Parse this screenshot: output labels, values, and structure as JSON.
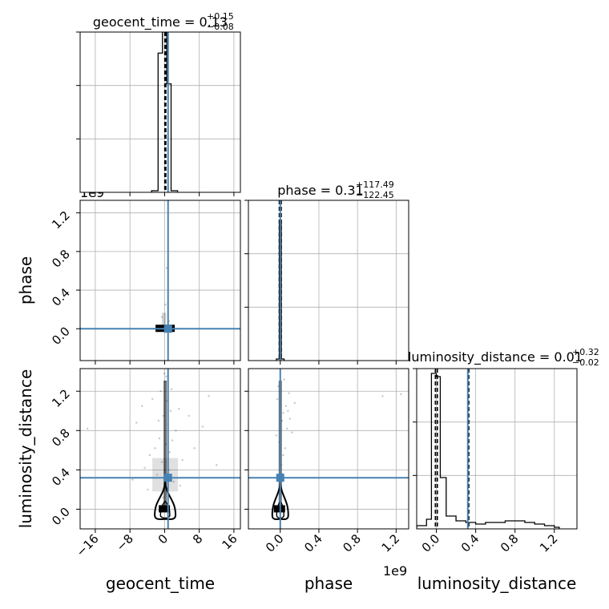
{
  "chart_data": {
    "type": "corner",
    "parameters": [
      "geocent_time",
      "phase",
      "luminosity_distance"
    ],
    "grid": true,
    "truth_color": "#4682b4",
    "histogram_color": "#000000",
    "titles": {
      "geocent_time": {
        "prefix": "geocent_time = 0.13",
        "sup": "+0.15",
        "sub": "−0.08"
      },
      "phase": {
        "prefix": "phase = 0.31",
        "sup": "+117.49",
        "sub": "−122.45"
      },
      "luminosity_distance": {
        "prefix": "luminosity_distance = 0.01",
        "sup": "+0.32",
        "sub": "−0.02"
      }
    },
    "axis_labels": {
      "x": [
        "geocent_time",
        "phase",
        "luminosity_distance"
      ],
      "y": [
        "phase",
        "luminosity_distance"
      ]
    },
    "offset_labels": {
      "phase_row": "1e9",
      "phase_col": "1e9"
    },
    "ticks": {
      "geocent_time": {
        "values": [
          -16,
          -8,
          0,
          8,
          16
        ],
        "labels": [
          "−16",
          "−8",
          "0",
          "8",
          "16"
        ]
      },
      "phase": {
        "values": [
          0.0,
          0.4,
          0.8,
          1.2
        ],
        "labels": [
          "0.0",
          "0.4",
          "0.8",
          "1.2"
        ]
      },
      "luminosity_distance": {
        "values": [
          0.0,
          0.4,
          0.8,
          1.2
        ],
        "labels": [
          "0.0",
          "0.4",
          "0.8",
          "1.2"
        ]
      }
    },
    "ranges": {
      "geocent_time": [
        -19.5,
        17.5
      ],
      "phase": [
        -0.33,
        1.33
      ],
      "luminosity_distance": [
        -0.2,
        1.43
      ]
    },
    "truths": {
      "geocent_time": 0.8,
      "phase": 0.0,
      "luminosity_distance": 0.32
    },
    "quantiles": {
      "geocent_time": [
        0.05,
        0.13,
        0.28
      ],
      "phase": [
        -0.01,
        0.0,
        0.01
      ],
      "luminosity_distance": [
        -0.01,
        0.01,
        0.33
      ]
    },
    "histograms": {
      "geocent_time": {
        "edges": [
          -3,
          -1.5,
          -0.5,
          0.5,
          1.5,
          3
        ],
        "values": [
          0.01,
          0.86,
          0.99,
          0.67,
          0.01
        ],
        "ylim": [
          0,
          0.99
        ]
      },
      "phase": {
        "edges": [
          -0.04,
          -0.01,
          0.01,
          0.04
        ],
        "values": [
          0.01,
          0.87,
          0.01
        ],
        "ylim": [
          0,
          1.0
        ]
      },
      "luminosity_distance": {
        "edges": [
          -0.2,
          -0.1,
          -0.05,
          0.0,
          0.04,
          0.1,
          0.2,
          0.3,
          0.4,
          0.5,
          0.6,
          0.7,
          0.8,
          0.9,
          1.0,
          1.1,
          1.2,
          1.25
        ],
        "values": [
          0.02,
          0.06,
          0.97,
          0.95,
          0.32,
          0.08,
          0.05,
          0.04,
          0.03,
          0.04,
          0.04,
          0.05,
          0.05,
          0.04,
          0.03,
          0.02,
          0.01
        ],
        "ylim": [
          0,
          1.0
        ]
      }
    },
    "scatter": {
      "phase_vs_geocent_time": [
        [
          -0.5,
          0.01
        ],
        [
          0.3,
          0.02
        ],
        [
          1.2,
          -0.01
        ],
        [
          -2.5,
          0.0
        ],
        [
          2.8,
          0.0
        ],
        [
          0.5,
          0.63
        ],
        [
          0.2,
          0.25
        ],
        [
          -0.6,
          0.12
        ],
        [
          1.0,
          0.08
        ],
        [
          -1.5,
          -0.01
        ],
        [
          3.5,
          0.0
        ]
      ],
      "luminosity_distance_vs_geocent_time": [
        [
          -17.8,
          0.82
        ],
        [
          -6.5,
          0.88
        ],
        [
          -5.2,
          1.05
        ],
        [
          -3.4,
          0.55
        ],
        [
          -4.6,
          0.42
        ],
        [
          -2.8,
          1.12
        ],
        [
          -1.7,
          0.35
        ],
        [
          -2.2,
          0.62
        ],
        [
          -1.2,
          0.72
        ],
        [
          -0.9,
          1.2
        ],
        [
          -0.6,
          0.48
        ],
        [
          -0.3,
          0.95
        ],
        [
          0.1,
          0.3
        ],
        [
          0.2,
          1.3
        ],
        [
          0.3,
          0.66
        ],
        [
          0.5,
          1.1
        ],
        [
          0.6,
          0.16
        ],
        [
          0.8,
          0.86
        ],
        [
          1.0,
          0.4
        ],
        [
          1.2,
          0.58
        ],
        [
          1.4,
          1.0
        ],
        [
          1.8,
          0.7
        ],
        [
          2.1,
          0.28
        ],
        [
          2.6,
          0.8
        ],
        [
          3.3,
          1.02
        ],
        [
          4.1,
          0.5
        ],
        [
          5.6,
          0.95
        ],
        [
          6.9,
          0.62
        ],
        [
          8.8,
          0.84
        ],
        [
          10.2,
          1.15
        ],
        [
          12.0,
          0.45
        ],
        [
          -7.4,
          0.3
        ],
        [
          -3.9,
          0.2
        ],
        [
          3.6,
          0.24
        ],
        [
          -0.4,
          0.12
        ],
        [
          0.7,
          0.2
        ],
        [
          -1.4,
          0.9
        ],
        [
          1.6,
          1.22
        ],
        [
          -0.1,
          1.38
        ],
        [
          0.4,
          1.35
        ]
      ],
      "luminosity_distance_vs_phase": [
        [
          -0.04,
          0.75
        ],
        [
          -0.02,
          1.25
        ],
        [
          0.0,
          1.1
        ],
        [
          0.02,
          0.9
        ],
        [
          0.04,
          1.32
        ],
        [
          0.06,
          1.05
        ],
        [
          0.08,
          1.0
        ],
        [
          0.1,
          0.92
        ],
        [
          0.12,
          0.78
        ],
        [
          0.15,
          1.08
        ],
        [
          0.03,
          0.55
        ],
        [
          -0.01,
          0.68
        ],
        [
          0.01,
          0.45
        ],
        [
          0.05,
          0.62
        ],
        [
          -0.03,
          1.12
        ],
        [
          0.07,
          0.82
        ],
        [
          0.09,
          1.18
        ],
        [
          1.06,
          1.15
        ],
        [
          1.25,
          1.17
        ],
        [
          0.02,
          0.36
        ],
        [
          0.0,
          1.3
        ],
        [
          0.03,
          0.98
        ]
      ]
    }
  }
}
